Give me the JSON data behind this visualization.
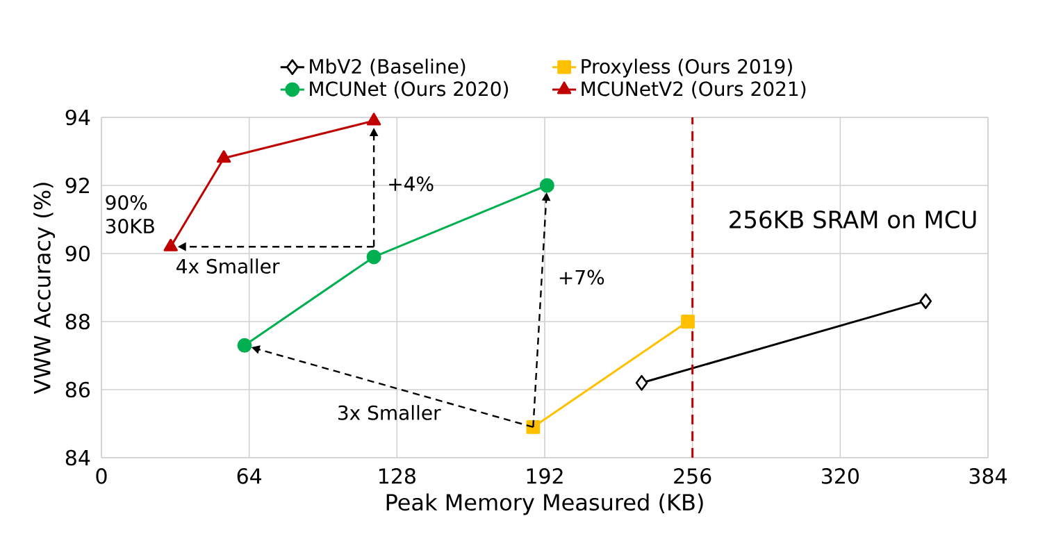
{
  "chart_data": {
    "type": "line",
    "xlabel": "Peak Memory Measured (KB)",
    "ylabel": "VWW Accuracy (%)",
    "xlim": [
      0,
      384
    ],
    "xticks": [
      0,
      64,
      128,
      192,
      256,
      320,
      384
    ],
    "ylim": [
      84,
      94
    ],
    "yticks": [
      84,
      86,
      88,
      90,
      92,
      94
    ],
    "grid": true,
    "legend": "top",
    "line_style": "solid",
    "series": [
      {
        "name": "MbV2 (Baseline)",
        "color": "#000000",
        "marker": "diamond",
        "x": [
          234,
          357
        ],
        "values": [
          86.2,
          88.6
        ]
      },
      {
        "name": "Proxyless (Ours 2019)",
        "color": "#ffc000",
        "marker": "square",
        "x": [
          187,
          254
        ],
        "values": [
          84.9,
          88.0
        ]
      },
      {
        "name": "MCUNet (Ours 2020)",
        "color": "#00b050",
        "marker": "circle",
        "x": [
          62,
          118,
          193
        ],
        "values": [
          87.3,
          89.9,
          92.0
        ]
      },
      {
        "name": "MCUNetV2 (Ours 2021)",
        "color": "#c00000",
        "marker": "triangle",
        "x": [
          30,
          53,
          118
        ],
        "values": [
          90.2,
          92.8,
          93.9
        ]
      }
    ],
    "ref_lines": [
      {
        "axis": "x",
        "value": 256,
        "label": "256KB SRAM on MCU",
        "color": "#c00000",
        "line_style": "dashed"
      }
    ],
    "annotations": [
      "90% 30KB",
      "+4%",
      "4x Smaller",
      "+7%",
      "3x Smaller"
    ]
  }
}
